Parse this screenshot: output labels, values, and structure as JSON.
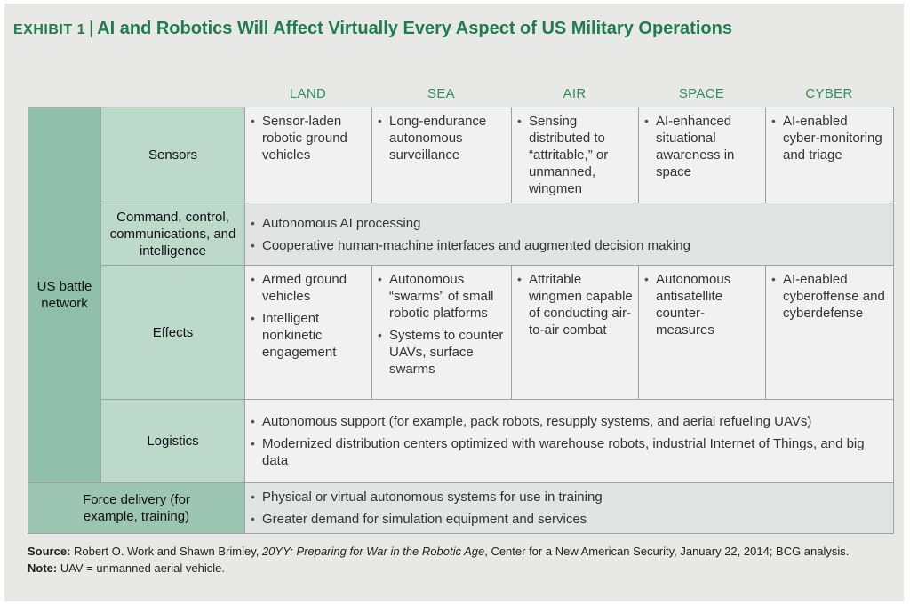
{
  "header": {
    "exhibit": "EXHIBIT 1",
    "separator": "|",
    "title": "AI and Robotics Will Affect Virtually Every Aspect of US Military Operations"
  },
  "columns": [
    "LAND",
    "SEA",
    "AIR",
    "SPACE",
    "CYBER"
  ],
  "group_label": "US battle network",
  "rows": {
    "sensors": {
      "label": "Sensors",
      "cells": [
        [
          "Sensor-laden robotic ground vehicles"
        ],
        [
          "Long-endurance autonomous surveillance"
        ],
        [
          "Sensing distributed to “attritable,” or unmanned, wingmen"
        ],
        [
          "AI-enhanced situational awareness in space"
        ],
        [
          "AI-enabled cyber-monitoring and triage"
        ]
      ]
    },
    "c3i": {
      "label": "Command, control, communications, and intelligence",
      "items": [
        "Autonomous AI processing",
        "Cooperative human-machine interfaces and augmented decision making"
      ]
    },
    "effects": {
      "label": "Effects",
      "cells": [
        [
          "Armed ground vehicles",
          "Intelligent nonkinetic engagement"
        ],
        [
          "Autonomous “swarms” of small robotic platforms",
          "Systems to counter UAVs, surface swarms"
        ],
        [
          "Attritable wingmen capable of conducting air-to-air combat"
        ],
        [
          "Autonomous antisatellite counter-measures"
        ],
        [
          "AI-enabled cyberoffense and cyberdefense"
        ]
      ]
    },
    "logistics": {
      "label": "Logistics",
      "items": [
        "Autonomous support (for example, pack robots, resupply systems, and aerial refueling UAVs)",
        "Modernized distribution centers optimized with warehouse robots, industrial Internet of Things, and big data"
      ]
    },
    "force": {
      "label": "Force delivery (for example, training)",
      "items": [
        "Physical or virtual autonomous systems for use in training",
        "Greater demand for simulation equipment and services"
      ]
    }
  },
  "footer": {
    "source_label": "Source:",
    "source_authors": " Robert O. Work and Shawn Brimley, ",
    "source_title": "20YY: Preparing for War in the Robotic Age",
    "source_rest": ", Center for a New American Security, January 22, 2014; BCG analysis.",
    "note_label": "Note:",
    "note_text": " UAV = unmanned aerial vehicle."
  },
  "colors": {
    "title_green": "#1f7c50",
    "column_head": "#2f8f5f",
    "network_fill": "#8fbfac",
    "row_label_fill": "#bcd9cc",
    "cell_fill": "#f0f1f0",
    "background": "#e8e9e7"
  }
}
